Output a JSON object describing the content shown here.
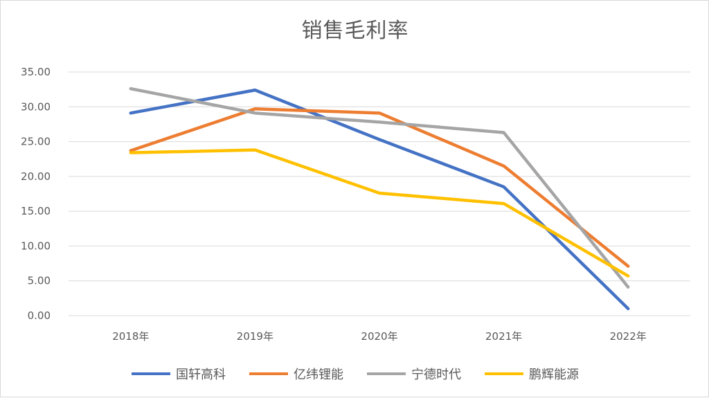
{
  "chart_data": {
    "type": "line",
    "title": "销售毛利率",
    "categories": [
      "2018年",
      "2019年",
      "2020年",
      "2021年",
      "2022年"
    ],
    "ylim": [
      0,
      35
    ],
    "yticks": [
      "0.00",
      "5.00",
      "10.00",
      "15.00",
      "20.00",
      "25.00",
      "30.00",
      "35.00"
    ],
    "grid": true,
    "legend_position": "bottom",
    "series": [
      {
        "name": "国轩高科",
        "color": "#4472c4",
        "values": [
          29.1,
          32.4,
          25.3,
          18.5,
          1.0
        ]
      },
      {
        "name": "亿纬锂能",
        "color": "#ed7d31",
        "values": [
          23.7,
          29.7,
          29.1,
          21.5,
          7.1
        ]
      },
      {
        "name": "宁德时代",
        "color": "#a5a5a5",
        "values": [
          32.6,
          29.1,
          27.8,
          26.3,
          4.1
        ]
      },
      {
        "name": "鹏辉能源",
        "color": "#ffc000",
        "values": [
          23.4,
          23.8,
          17.6,
          16.1,
          5.7
        ]
      }
    ]
  }
}
